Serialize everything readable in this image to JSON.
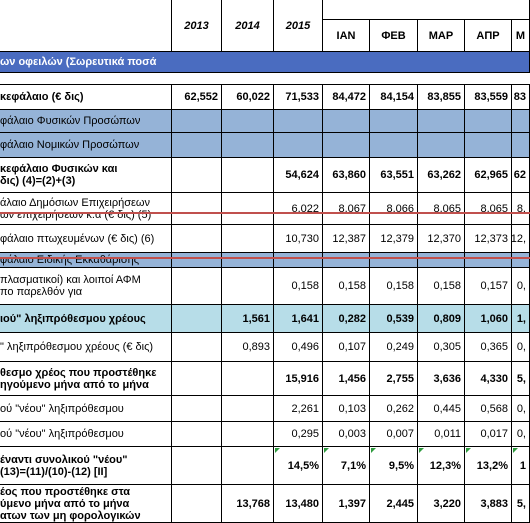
{
  "table": {
    "header": [
      "2013",
      "2014",
      "2015",
      "ΙΑΝ",
      "ΦΕΒ",
      "ΜΑΡ",
      "ΑΠΡ",
      "Μ"
    ],
    "rows": [
      {
        "label": [
          "ων οφειλών (Σωρευτικά ποσά"
        ],
        "cells": [
          null,
          null,
          null,
          null,
          null,
          null,
          null,
          null
        ]
      },
      {
        "label": [
          "κεφάλαιο (€ δις)"
        ],
        "cells": [
          "62,552",
          "60,022",
          "71,533",
          "84,472",
          "84,154",
          "83,855",
          "83,559",
          "83"
        ]
      },
      {
        "label": [
          "φάλαιο Φυσικών Προσώπων"
        ],
        "cells": [
          null,
          null,
          null,
          null,
          null,
          null,
          null,
          null
        ]
      },
      {
        "label": [
          "φάλαιο Νομικών Προσώπων"
        ],
        "cells": [
          null,
          null,
          null,
          null,
          null,
          null,
          null,
          null
        ]
      },
      {
        "label": [
          "κεφάλαιο Φυσικών και",
          " δις) (4)=(2)+(3)"
        ],
        "cells": [
          null,
          null,
          "54,624",
          "63,860",
          "63,551",
          "63,262",
          "62,965",
          "62"
        ]
      },
      {
        "label": [
          "άλαιο Δημόσιων Επιχειρήσεων",
          "ων επιχειρήσεων κ.α (€ δις) (5)"
        ],
        "cells": [
          null,
          null,
          "6,022",
          "8,067",
          "8,066",
          "8,065",
          "8,065",
          "8,"
        ]
      },
      {
        "label": [
          "φάλαιο πτωχευμένων (€ δις)  (6)"
        ],
        "cells": [
          null,
          null,
          "10,730",
          "12,387",
          "12,379",
          "12,370",
          "12,373",
          "12,"
        ]
      },
      {
        "label": [
          "φάλαιο Ειδικής Εκκαθάρισης"
        ],
        "cells": [
          null,
          null,
          null,
          null,
          null,
          null,
          null,
          null
        ]
      },
      {
        "label": [
          "πλασματικοί) και λοιποί ΑΦΜ",
          "πο παρελθόν για"
        ],
        "cells": [
          null,
          null,
          "0,158",
          "0,158",
          "0,158",
          "0,158",
          "0,157",
          "0,"
        ]
      },
      {
        "label": [
          "ιού\" ληξιπρόθεσμου χρέους"
        ],
        "cells": [
          null,
          "1,561",
          "1,641",
          "0,282",
          "0,539",
          "0,809",
          "1,060",
          "1,"
        ]
      },
      {
        "label": [
          "\" ληξιπρόθεσμου χρέους (€ δις)"
        ],
        "cells": [
          null,
          "0,893",
          "0,496",
          "0,107",
          "0,249",
          "0,305",
          "0,365",
          "0,"
        ]
      },
      {
        "label": [
          "θεσμο χρέος που προστέθηκε",
          "ηγούμενο μήνα από το μήνα"
        ],
        "cells": [
          null,
          null,
          "15,916",
          "1,456",
          "2,755",
          "3,636",
          "4,330",
          "5,"
        ]
      },
      {
        "label": [
          "ού \"νέου\" ληξιπρόθεσμου"
        ],
        "cells": [
          null,
          null,
          "2,261",
          "0,103",
          "0,262",
          "0,445",
          "0,568",
          "0,"
        ]
      },
      {
        "label": [
          "ού \"νέου\" ληξιπρόθεσμου"
        ],
        "cells": [
          null,
          null,
          "0,295",
          "0,003",
          "0,007",
          "0,011",
          "0,017",
          "0,"
        ]
      },
      {
        "label": [
          " έναντι συνολικού \"νέου\"",
          " (13)=(11)/(10)-(12) [ΙΙ]"
        ],
        "cells": [
          null,
          null,
          "14,5%",
          "7,1%",
          "9,5%",
          "12,3%",
          "13,2%",
          "1"
        ]
      },
      {
        "label": [
          "έος που προστέθηκε στα",
          "ύμενο μήνα από το μήνα",
          "ατων των μη φορολογικών"
        ],
        "cells": [
          null,
          "13,768",
          "13,480",
          "1,397",
          "2,445",
          "3,220",
          "3,883",
          "5,"
        ]
      }
    ]
  }
}
